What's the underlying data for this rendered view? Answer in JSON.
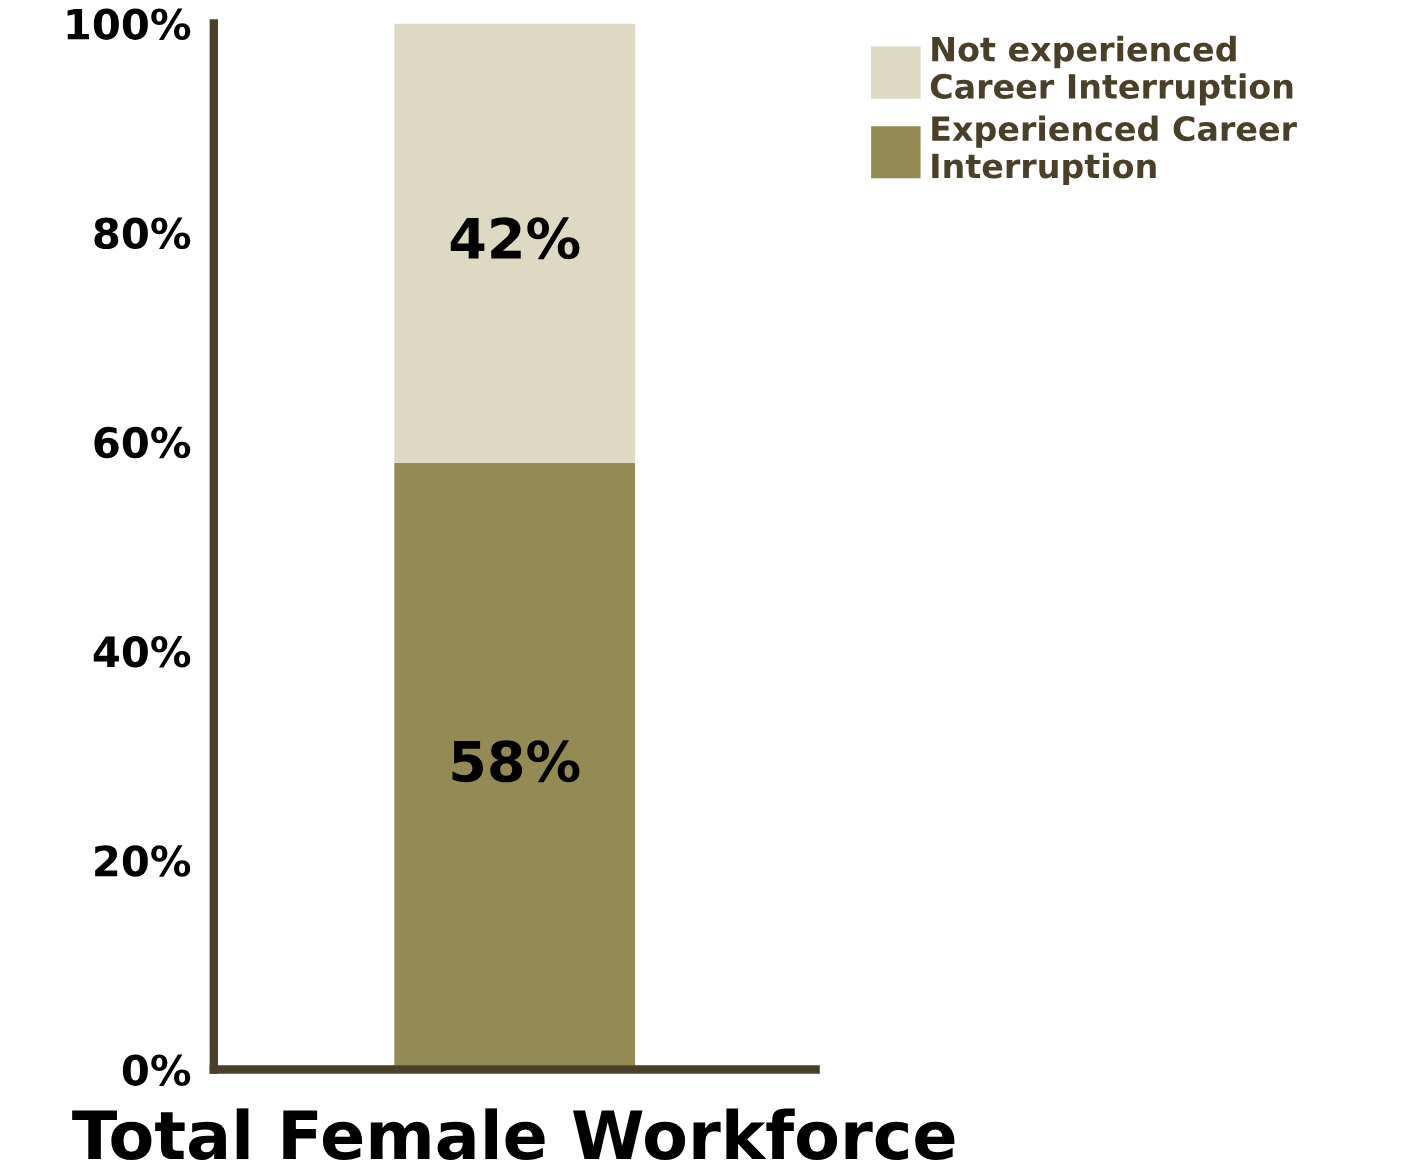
{
  "chart_data": {
    "type": "bar",
    "stacked": true,
    "categories": [
      "Total Female Workforce"
    ],
    "series": [
      {
        "name": "Experienced Career Interruption",
        "color": "#948a54",
        "values": [
          58
        ],
        "value_labels": [
          "58%"
        ]
      },
      {
        "name": "Not experienced Career Interruption",
        "color": "#ddd9c3",
        "values": [
          42
        ],
        "value_labels": [
          "42%"
        ]
      }
    ],
    "ylim": [
      0,
      100
    ],
    "yticks": [
      {
        "value": 0,
        "label": "0%"
      },
      {
        "value": 20,
        "label": "20%"
      },
      {
        "value": 40,
        "label": "40%"
      },
      {
        "value": 60,
        "label": "60%"
      },
      {
        "value": 80,
        "label": "80%"
      },
      {
        "value": 100,
        "label": "100%"
      }
    ],
    "grid": false,
    "legend": "top right"
  }
}
